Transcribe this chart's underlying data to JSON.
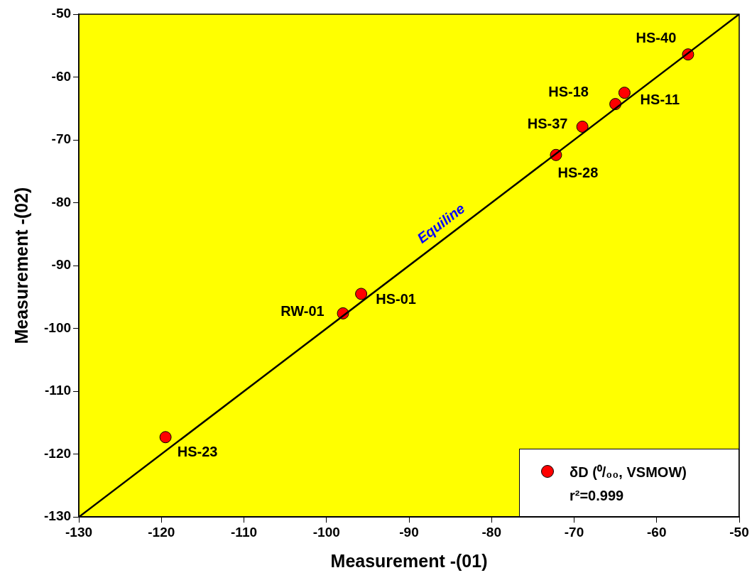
{
  "chart_data": {
    "type": "scatter",
    "xlabel": "Measurement -(01)",
    "ylabel": "Measurement -(02)",
    "xlim": [
      -130,
      -50
    ],
    "xticks": [
      -130,
      -120,
      -110,
      -100,
      -90,
      -80,
      -70,
      -60,
      -50
    ],
    "ylim": [
      -130,
      -50
    ],
    "yticks": [
      -130,
      -120,
      -110,
      -100,
      -90,
      -80,
      -70,
      -60,
      -50
    ],
    "series": [
      {
        "name": "δD (⁰/₀₀, VSMOW)",
        "color": "#ff0000",
        "marker": "circle",
        "x": [
          -56.2,
          -63.9,
          -65.0,
          -69.0,
          -72.2,
          -95.8,
          -98.0,
          -119.5
        ],
        "values": [
          -56.4,
          -62.5,
          -64.3,
          -67.9,
          -72.4,
          -94.5,
          -97.6,
          -117.3
        ]
      },
      {
        "type": "line",
        "color": "#000000",
        "x": [
          -130,
          -50
        ],
        "values": [
          -130,
          -50
        ]
      }
    ],
    "legend": "bottom right",
    "grid": false,
    "annotations": [
      {
        "text": "HS-40",
        "x": -56.2,
        "y": -56.4
      },
      {
        "text": "HS-11",
        "x": -63.9,
        "y": -62.5
      },
      {
        "text": "HS-18",
        "x": -65.0,
        "y": -64.3
      },
      {
        "text": "HS-37",
        "x": -69.0,
        "y": -67.9
      },
      {
        "text": "HS-28",
        "x": -72.2,
        "y": -72.4
      },
      {
        "text": "HS-01",
        "x": -95.8,
        "y": -94.5
      },
      {
        "text": "RW-01",
        "x": -98.0,
        "y": -97.6
      },
      {
        "text": "HS-23",
        "x": -119.5,
        "y": -117.3
      },
      "Equiline",
      "r²=0.999"
    ]
  }
}
